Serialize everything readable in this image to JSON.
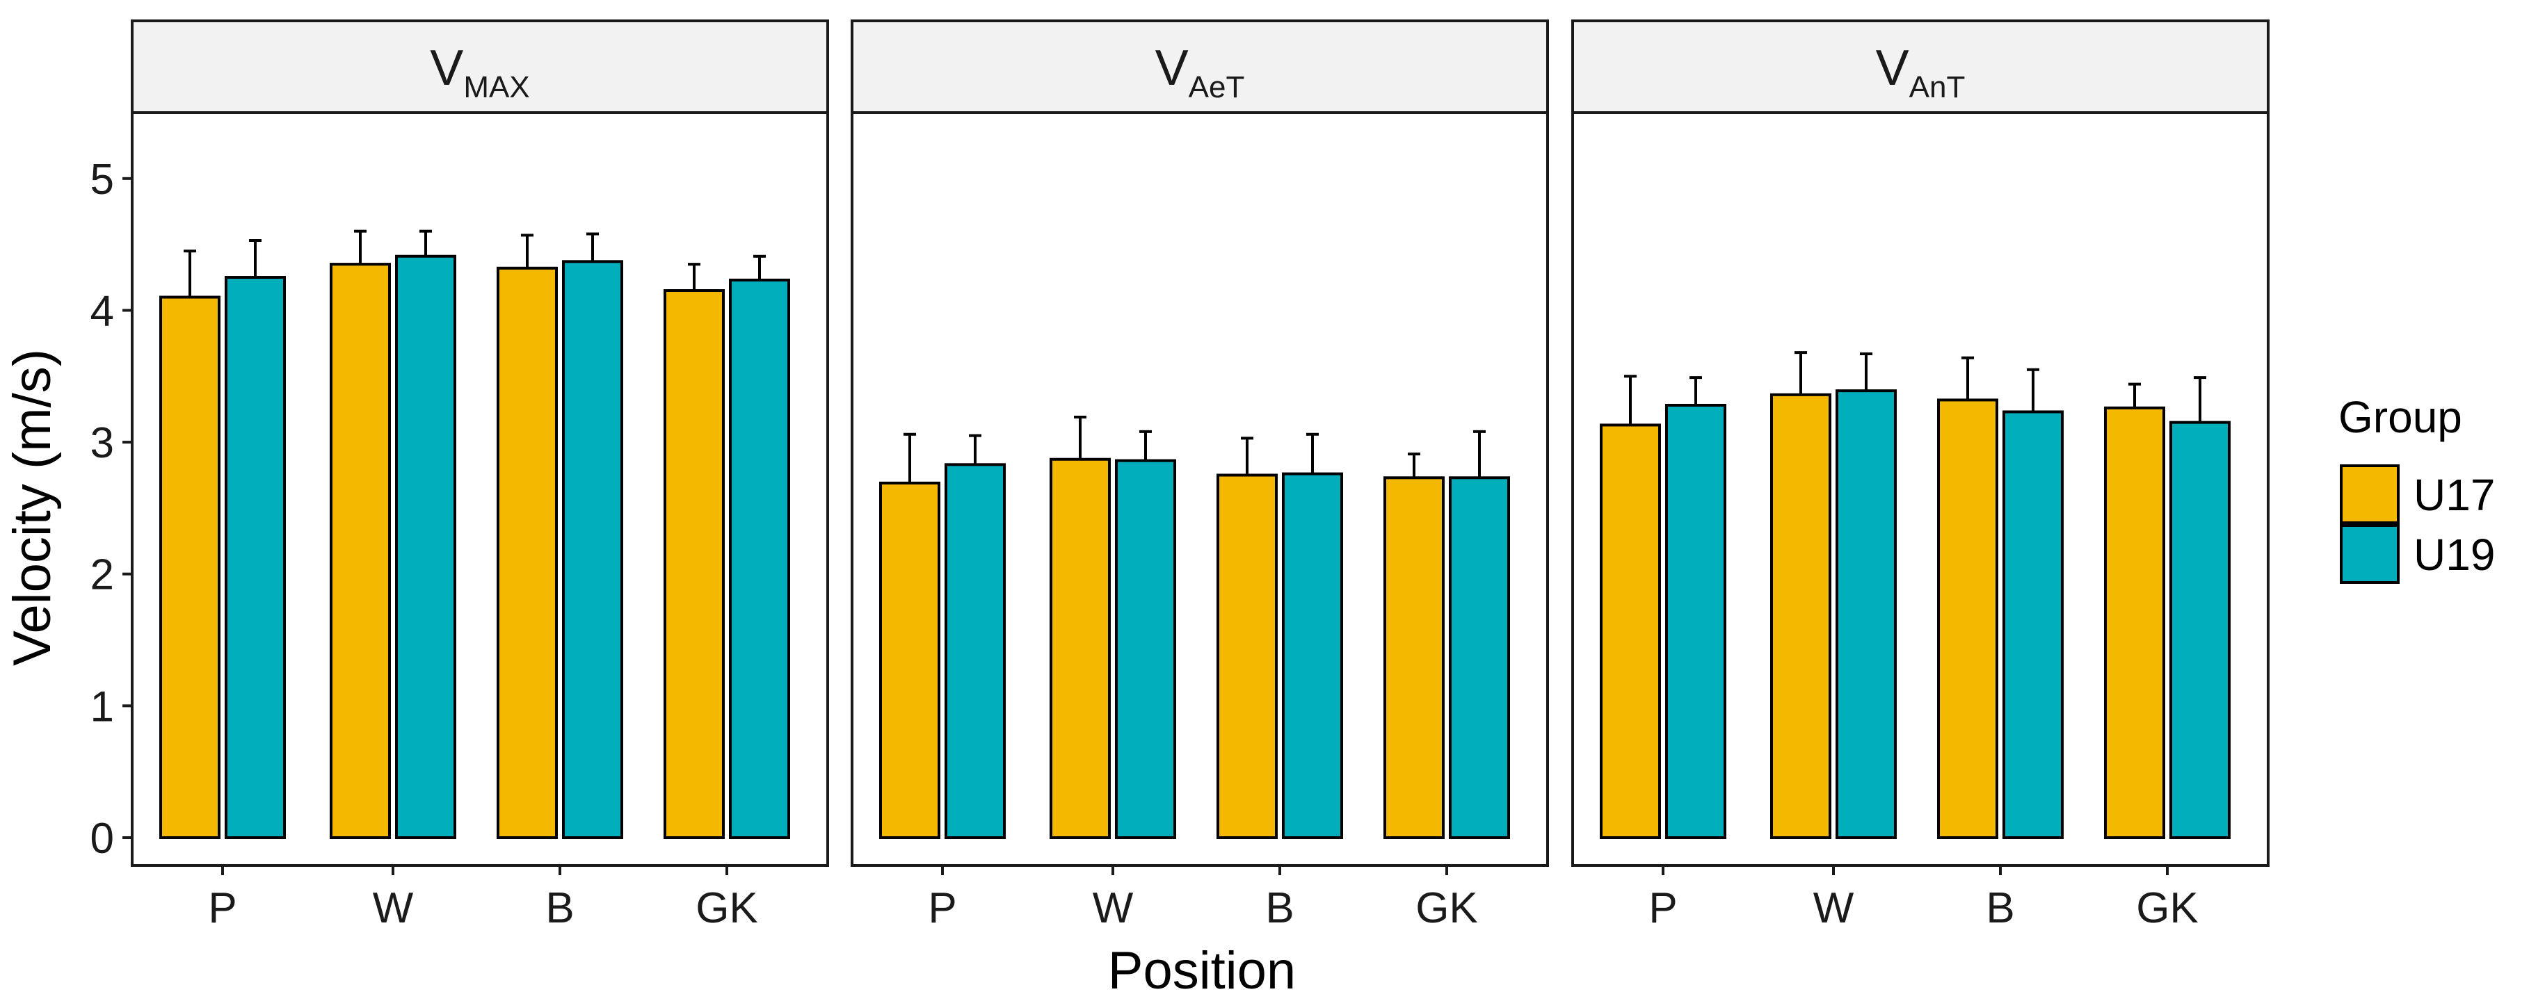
{
  "chart_data": {
    "type": "bar",
    "xlabel": "Position",
    "ylabel": "Velocity (m/s)",
    "ylim": [
      0,
      5.5
    ],
    "yticks": [
      "0",
      "1",
      "2",
      "3",
      "4",
      "5"
    ],
    "categories": [
      "P",
      "W",
      "B",
      "GK"
    ],
    "legend": {
      "title": "Group",
      "position": "right",
      "entries": [
        {
          "name": "U17",
          "color": "#F5B800"
        },
        {
          "name": "U19",
          "color": "#00AEBB"
        }
      ]
    },
    "facets": [
      {
        "label_main": "V",
        "label_sub": "MAX",
        "series": [
          {
            "name": "U17",
            "values": [
              4.1,
              4.35,
              4.32,
              4.15
            ],
            "sd": [
              0.35,
              0.25,
              0.25,
              0.2
            ]
          },
          {
            "name": "U19",
            "values": [
              4.25,
              4.41,
              4.37,
              4.23
            ],
            "sd": [
              0.28,
              0.19,
              0.21,
              0.18
            ]
          }
        ]
      },
      {
        "label_main": "V",
        "label_sub": "AeT",
        "series": [
          {
            "name": "U17",
            "values": [
              2.69,
              2.87,
              2.75,
              2.73
            ],
            "sd": [
              0.37,
              0.32,
              0.28,
              0.18
            ]
          },
          {
            "name": "U19",
            "values": [
              2.83,
              2.86,
              2.76,
              2.73
            ],
            "sd": [
              0.22,
              0.22,
              0.3,
              0.35
            ]
          }
        ]
      },
      {
        "label_main": "V",
        "label_sub": "AnT",
        "series": [
          {
            "name": "U17",
            "values": [
              3.13,
              3.36,
              3.32,
              3.26
            ],
            "sd": [
              0.37,
              0.32,
              0.32,
              0.18
            ]
          },
          {
            "name": "U19",
            "values": [
              3.28,
              3.39,
              3.23,
              3.15
            ],
            "sd": [
              0.21,
              0.28,
              0.32,
              0.34
            ]
          }
        ]
      }
    ]
  }
}
